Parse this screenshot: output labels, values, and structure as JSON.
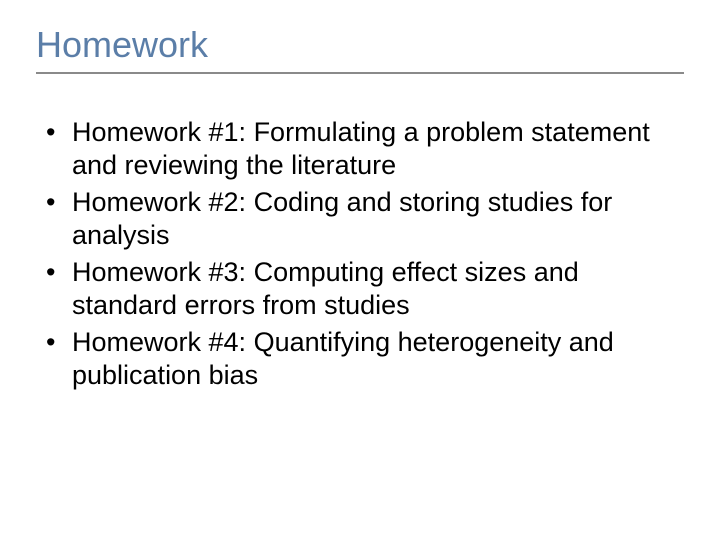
{
  "slide": {
    "title": "Homework",
    "title_color": "#5b7ea8",
    "title_fontsize": 36,
    "underline_color": "#8a8a8a",
    "body_fontsize": 27,
    "body_color": "#000000",
    "background_color": "#ffffff",
    "bullets": [
      "Homework #1: Formulating a problem statement and reviewing the literature",
      "Homework #2: Coding and storing studies for analysis",
      "Homework #3: Computing effect sizes and standard errors from studies",
      "Homework #4: Quantifying heterogeneity and publication bias"
    ]
  }
}
